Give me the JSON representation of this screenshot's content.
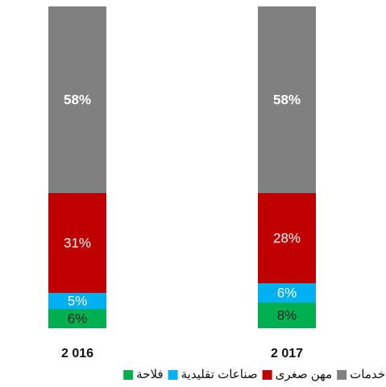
{
  "chart_data": {
    "type": "stacked_bar",
    "categories": [
      "2 016",
      "2 017"
    ],
    "ylim": [
      0,
      100
    ],
    "series": [
      {
        "name": "فلاحة",
        "color": "#00b050",
        "values": [
          6,
          8
        ],
        "value_labels": [
          "6%",
          "8%"
        ]
      },
      {
        "name": "صناعات تقليدية",
        "color": "#00b0f0",
        "values": [
          5,
          6
        ],
        "value_labels": [
          "5%",
          "6%"
        ]
      },
      {
        "name": "مهن صغرى",
        "color": "#c00000",
        "values": [
          31,
          28
        ],
        "value_labels": [
          "31%",
          "28%"
        ]
      },
      {
        "name": "خدمات",
        "color": "#808080",
        "values": [
          58,
          58
        ],
        "value_labels": [
          "58%",
          "58%"
        ]
      }
    ]
  }
}
